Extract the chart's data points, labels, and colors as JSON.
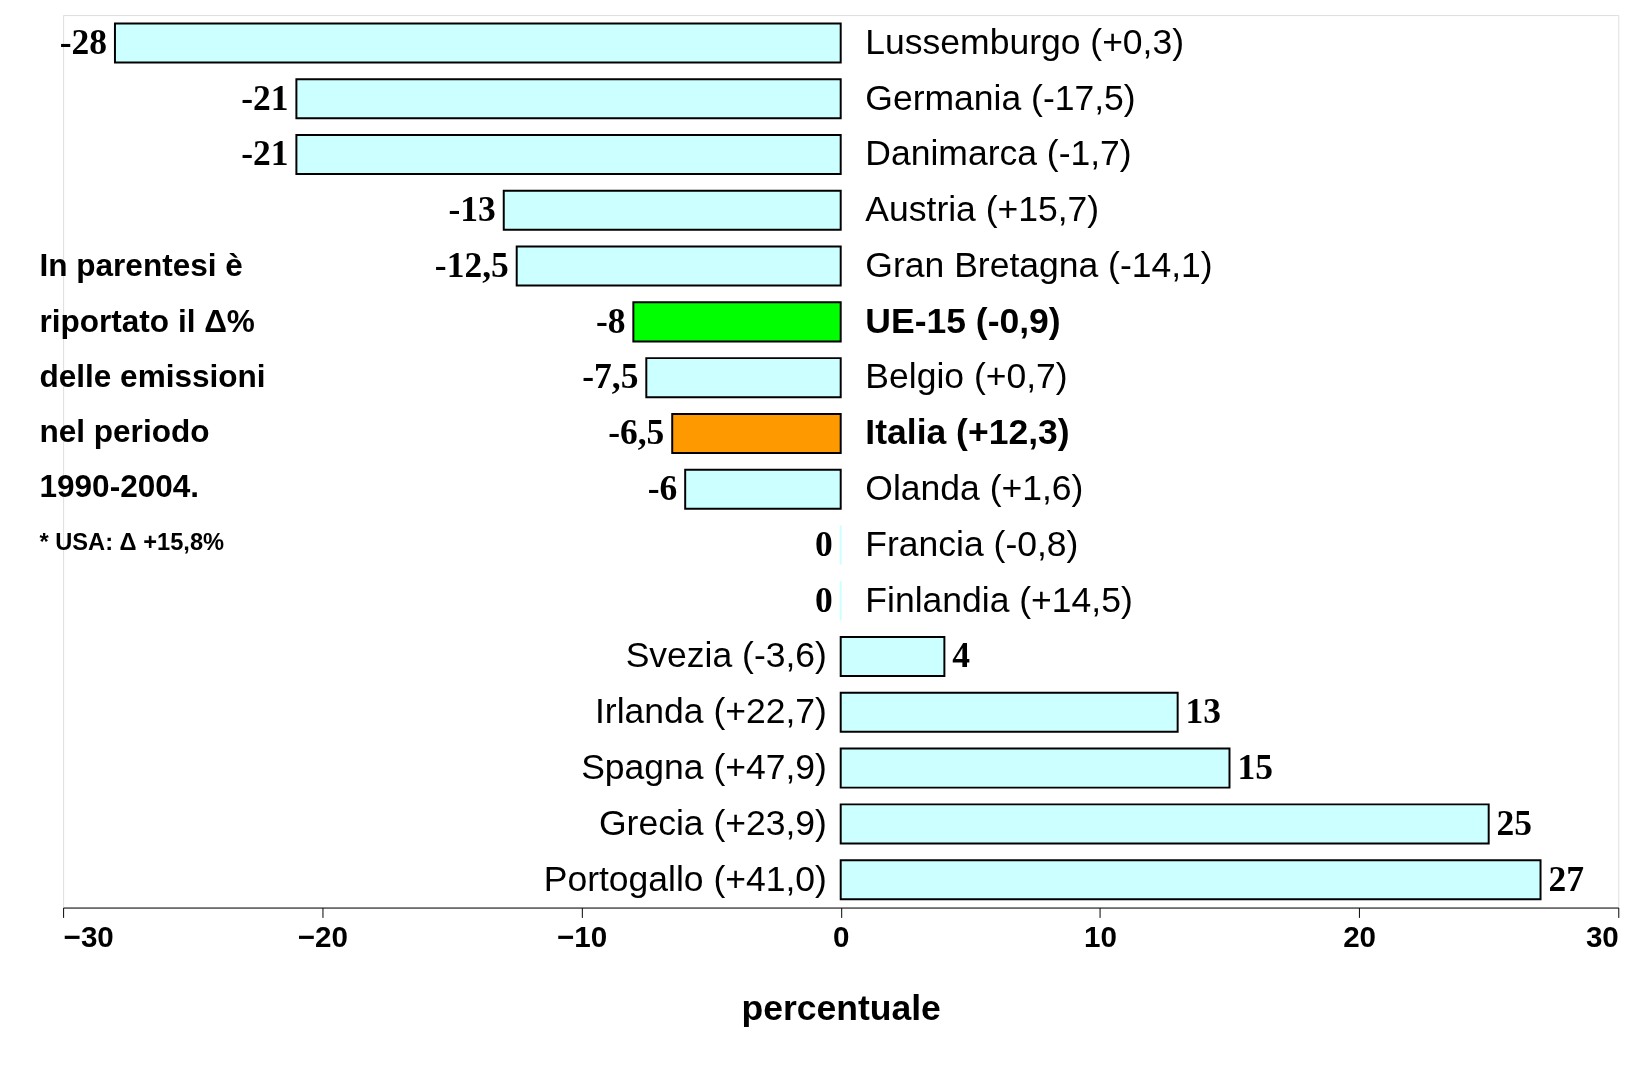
{
  "chart_data": {
    "type": "bar",
    "orientation": "horizontal",
    "categories": [
      "Lussemburgo (+0,3)",
      "Germania (-17,5)",
      "Danimarca (-1,7)",
      "Austria (+15,7)",
      "Gran Bretagna (-14,1)",
      "UE-15 (-0,9)",
      "Belgio (+0,7)",
      "Italia (+12,3)",
      "Olanda (+1,6)",
      "Francia (-0,8)",
      "Finlandia (+14,5)",
      "Svezia (-3,6)",
      "Irlanda (+22,7)",
      "Spagna (+47,9)",
      "Grecia (+23,9)",
      "Portogallo (+41,0)"
    ],
    "values": [
      -28,
      -21,
      -21,
      -13,
      -12.5,
      -8,
      -7.5,
      -6.5,
      -6,
      0,
      0,
      4,
      13,
      15,
      25,
      27
    ],
    "value_labels": [
      "-28",
      "-21",
      "-21",
      "-13",
      "-12,5",
      "-8",
      "-7,5",
      "-6,5",
      "-6",
      "0",
      "0",
      "4",
      "13",
      "15",
      "25",
      "27"
    ],
    "colors": [
      "#ccffff",
      "#ccffff",
      "#ccffff",
      "#ccffff",
      "#ccffff",
      "#00ff00",
      "#ccffff",
      "#ff9900",
      "#ccffff",
      "#ccffff",
      "#ccffff",
      "#ccffff",
      "#ccffff",
      "#ccffff",
      "#ccffff",
      "#ccffff"
    ],
    "xlabel": "percentuale",
    "xlim": [
      -30,
      30
    ],
    "xticks": [
      -30,
      -20,
      -10,
      0,
      10,
      20,
      30
    ],
    "grid": false,
    "annotations": [
      "In parentesi è riportato il Δ% delle emissioni nel periodo 1990-2004.",
      "* USA: Δ +15,8%"
    ]
  }
}
